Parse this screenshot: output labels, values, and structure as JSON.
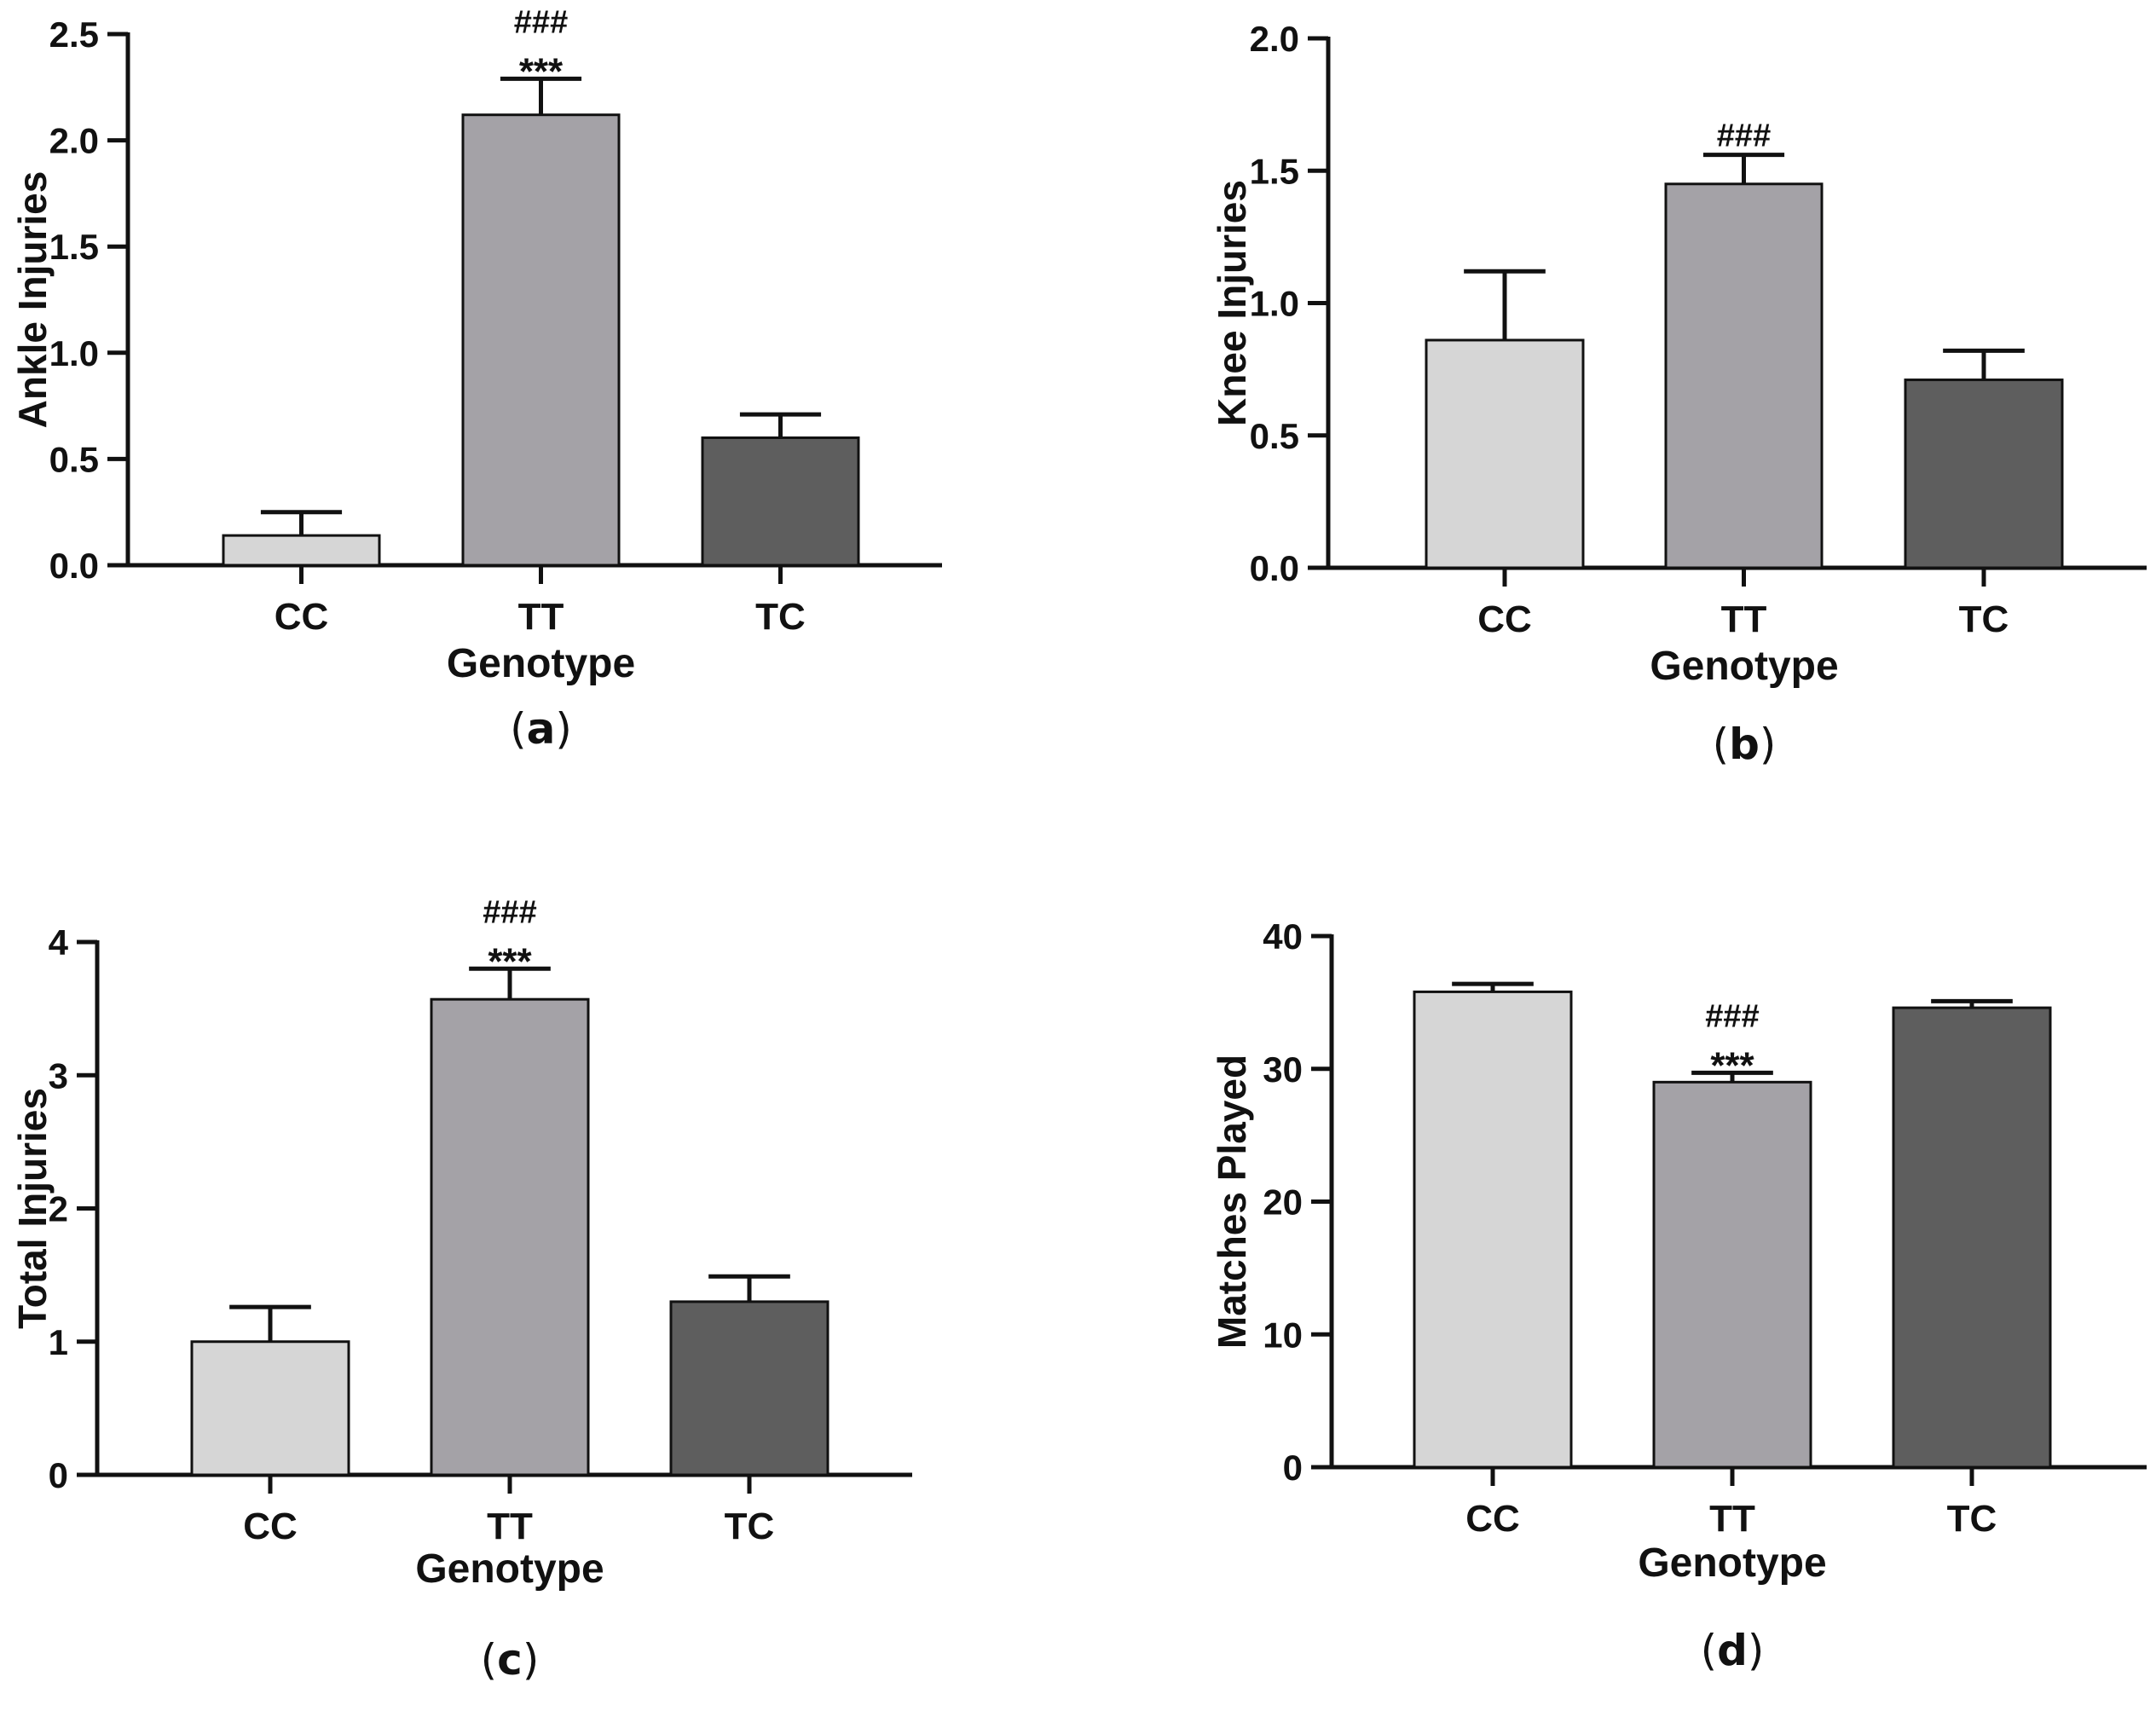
{
  "colors": {
    "CC": "#d6d6d6",
    "TT": "#a4a2a7",
    "TC": "#5e5e5e",
    "axis": "#111111"
  },
  "chart_data": [
    {
      "type": "bar",
      "panel_label_prefix": "(",
      "panel_label": "a",
      "panel_label_suffix": ")",
      "categories": [
        "CC",
        "TT",
        "TC"
      ],
      "values": [
        0.14,
        2.12,
        0.6
      ],
      "errors": [
        0.11,
        0.17,
        0.11
      ],
      "annotations": [
        [],
        [
          "###",
          "***"
        ],
        []
      ],
      "xlabel": "Genotype",
      "ylabel": "Ankle Injuries",
      "ylim": [
        0,
        2.5
      ],
      "yticks": [
        0.0,
        0.5,
        1.0,
        1.5,
        2.0,
        2.5
      ],
      "ytick_labels": [
        "0.0",
        "0.5",
        "1.0",
        "1.5",
        "2.0",
        "2.5"
      ]
    },
    {
      "type": "bar",
      "panel_label_prefix": "(",
      "panel_label": "b",
      "panel_label_suffix": ")",
      "categories": [
        "CC",
        "TT",
        "TC"
      ],
      "values": [
        0.86,
        1.45,
        0.71
      ],
      "errors": [
        0.26,
        0.11,
        0.11
      ],
      "annotations": [
        [],
        [
          "###"
        ],
        []
      ],
      "xlabel": "Genotype",
      "ylabel": "Knee Injuries",
      "ylim": [
        0,
        2.0
      ],
      "yticks": [
        0.0,
        0.5,
        1.0,
        1.5,
        2.0
      ],
      "ytick_labels": [
        "0.0",
        "0.5",
        "1.0",
        "1.5",
        "2.0"
      ]
    },
    {
      "type": "bar",
      "panel_label_prefix": "(",
      "panel_label": "c",
      "panel_label_suffix": ")",
      "categories": [
        "CC",
        "TT",
        "TC"
      ],
      "values": [
        1.0,
        3.57,
        1.3
      ],
      "errors": [
        0.26,
        0.23,
        0.19
      ],
      "annotations": [
        [],
        [
          "###",
          "***"
        ],
        []
      ],
      "xlabel": "Genotype",
      "ylabel": "Total Injuries",
      "ylim": [
        0,
        4
      ],
      "yticks": [
        0,
        1,
        2,
        3,
        4
      ],
      "ytick_labels": [
        "0",
        "1",
        "2",
        "3",
        "4"
      ]
    },
    {
      "type": "bar",
      "panel_label_prefix": "(",
      "panel_label": "d",
      "panel_label_suffix": ")",
      "categories": [
        "CC",
        "TT",
        "TC"
      ],
      "values": [
        35.8,
        29.0,
        34.6
      ],
      "errors": [
        0.6,
        0.7,
        0.5
      ],
      "annotations": [
        [],
        [
          "###",
          "***"
        ],
        []
      ],
      "xlabel": "Genotype",
      "ylabel": "Matches Played",
      "ylim": [
        0,
        40
      ],
      "yticks": [
        0,
        10,
        20,
        30,
        40
      ],
      "ytick_labels": [
        "0",
        "10",
        "20",
        "30",
        "40"
      ]
    }
  ]
}
